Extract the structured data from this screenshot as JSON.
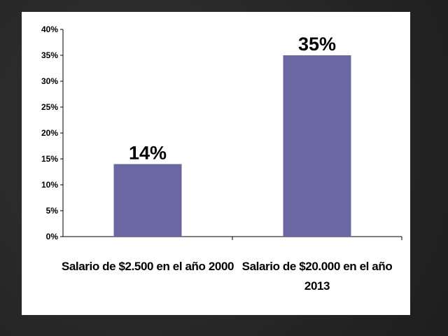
{
  "chart_data": {
    "type": "bar",
    "categories": [
      "Salario de $2.500 en el año 2000",
      "Salario de $20.000 en el año 2013"
    ],
    "values": [
      14,
      35
    ],
    "data_labels": [
      "14%",
      "35%"
    ],
    "yticks": [
      "0%",
      "5%",
      "10%",
      "15%",
      "20%",
      "25%",
      "30%",
      "35%",
      "40%"
    ],
    "ylim": [
      0,
      40
    ],
    "grid": false,
    "legend": "none",
    "bar_color": "#6b67a3"
  }
}
